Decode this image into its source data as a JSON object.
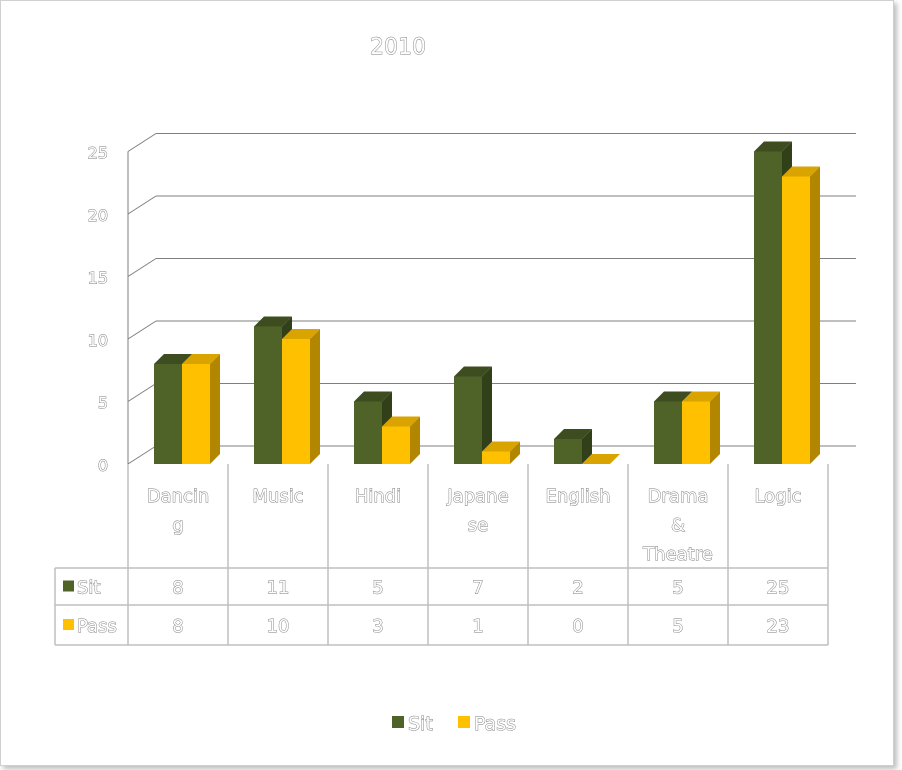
{
  "chart_data": {
    "type": "bar",
    "title": "2010",
    "categories": [
      [
        "Dancin",
        "g"
      ],
      [
        "Music"
      ],
      [
        "Hindi"
      ],
      [
        "Japane",
        "se"
      ],
      [
        "English"
      ],
      [
        "Drama",
        "&",
        "Theatre"
      ],
      [
        "Logic"
      ]
    ],
    "series": [
      {
        "name": "Sit",
        "values": [
          8,
          11,
          5,
          7,
          2,
          5,
          25
        ]
      },
      {
        "name": "Pass",
        "values": [
          8,
          10,
          3,
          1,
          0,
          5,
          23
        ]
      }
    ],
    "ylim": [
      0,
      25
    ],
    "yticks": [
      "0",
      "5",
      "10",
      "15",
      "20",
      "25"
    ],
    "grid": true,
    "legend": "bottom",
    "data_table": true,
    "colors": {
      "sit_front": "#4f6228",
      "sit_side": "#32401a",
      "sit_top": "#3d4d1f",
      "pass_front": "#ffc000",
      "pass_side": "#b38600",
      "pass_top": "#d9a300",
      "grid": "#7f7f7f",
      "table_border": "#bfbfbf"
    }
  }
}
